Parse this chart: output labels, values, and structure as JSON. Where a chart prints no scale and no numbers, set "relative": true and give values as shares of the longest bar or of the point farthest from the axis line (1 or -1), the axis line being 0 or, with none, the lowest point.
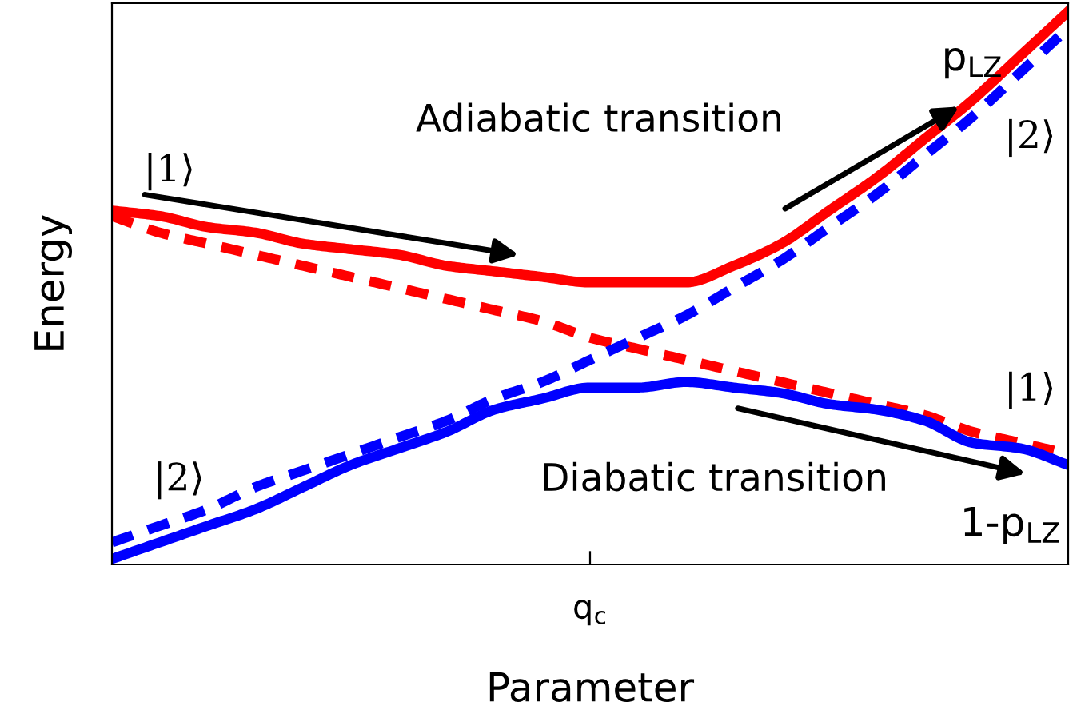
{
  "chart_data": {
    "type": "line",
    "relative": true,
    "xlabel": "Parameter",
    "ylabel": "Energy",
    "grid": false,
    "legend": false,
    "categories": [
      null,
      null,
      null,
      null,
      null,
      null,
      null,
      null,
      null,
      null,
      null,
      null,
      null,
      null,
      null,
      null,
      null,
      null,
      null,
      null,
      null
    ],
    "series": [
      {
        "color": "#ff0000",
        "line_style": "dashed",
        "values": [
          0.63,
          0.6,
          0.58,
          0.56,
          0.54,
          0.52,
          0.5,
          0.48,
          0.46,
          0.44,
          0.41,
          0.39,
          0.37,
          0.35,
          0.33,
          0.31,
          0.29,
          0.27,
          0.24,
          0.22,
          0.2
        ]
      },
      {
        "color": "#0000ff",
        "line_style": "dashed",
        "values": [
          0.04,
          0.07,
          0.1,
          0.14,
          0.17,
          0.2,
          0.23,
          0.26,
          0.3,
          0.33,
          0.37,
          0.41,
          0.45,
          0.5,
          0.55,
          0.61,
          0.67,
          0.74,
          0.81,
          0.89,
          0.97
        ]
      },
      {
        "color": "#ff0000",
        "line_style": "solid",
        "values": [
          0.64,
          0.63,
          0.61,
          0.6,
          0.58,
          0.57,
          0.56,
          0.54,
          0.53,
          0.52,
          0.51,
          0.51,
          0.51,
          0.54,
          0.58,
          0.64,
          0.7,
          0.77,
          0.84,
          0.92,
          1.0
        ]
      },
      {
        "color": "#0000ff",
        "line_style": "solid",
        "values": [
          0.01,
          0.04,
          0.07,
          0.1,
          0.14,
          0.18,
          0.21,
          0.24,
          0.28,
          0.3,
          0.32,
          0.32,
          0.33,
          0.32,
          0.31,
          0.29,
          0.28,
          0.26,
          0.22,
          0.21,
          0.18
        ]
      }
    ],
    "annotations": [
      "q$_{c}$",
      "|1⟩",
      "Adiabatic transition",
      "p$_{LZ}$",
      "|2⟩",
      "|1⟩",
      "|2⟩",
      "Diabatic transition",
      "1-p$_{LZ}$"
    ]
  }
}
